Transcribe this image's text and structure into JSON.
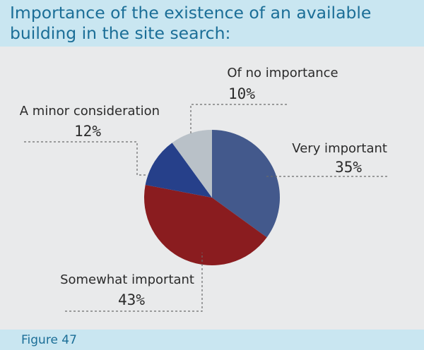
{
  "title": {
    "line1": "Importance of the existence of an available",
    "line2": "building in the site search:"
  },
  "footer": {
    "label": "Figure 47"
  },
  "chart_data": {
    "type": "pie",
    "slices": [
      {
        "label": "Very important",
        "value": 35,
        "value_label": "35%",
        "color": "#43598c"
      },
      {
        "label": "Somewhat important",
        "value": 43,
        "value_label": "43%",
        "color": "#8a1c1f"
      },
      {
        "label": "A minor consideration",
        "value": 12,
        "value_label": "12%",
        "color": "#26408a"
      },
      {
        "label": "Of no importance",
        "value": 10,
        "value_label": "10%",
        "color": "#b9c1c8"
      }
    ],
    "start": "12 o'clock",
    "direction": "clockwise"
  }
}
